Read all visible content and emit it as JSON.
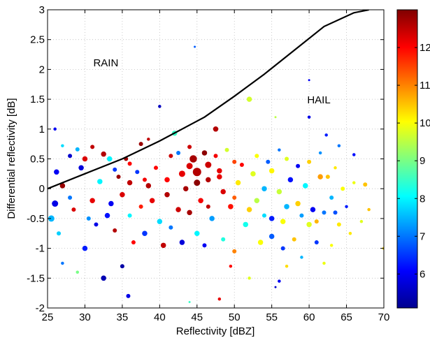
{
  "chart_data": {
    "type": "scatter",
    "xlabel": "Reflectivity [dBZ]",
    "ylabel": "Differential reflectivity [dB]",
    "xlim": [
      25,
      70
    ],
    "ylim": [
      -2,
      3
    ],
    "xticks": [
      25,
      30,
      35,
      40,
      45,
      50,
      55,
      60,
      65,
      70
    ],
    "yticks": [
      -2,
      -1.5,
      -1,
      -0.5,
      0,
      0.5,
      1,
      1.5,
      2,
      2.5,
      3
    ],
    "grid": true,
    "annotations": [
      {
        "text": "RAIN",
        "x": 32.8,
        "y": 2.05
      },
      {
        "text": "HAIL",
        "x": 61.3,
        "y": 1.43
      }
    ],
    "boundary_curve": {
      "x": [
        25,
        30,
        35,
        40,
        43,
        46,
        50,
        54,
        58,
        62,
        66,
        68
      ],
      "y": [
        0.0,
        0.25,
        0.5,
        0.8,
        1.0,
        1.2,
        1.55,
        1.92,
        2.32,
        2.72,
        2.95,
        3.0
      ]
    },
    "colorbar": {
      "ticks": [
        6,
        7,
        8,
        9,
        10,
        11,
        12
      ],
      "range": [
        5.1,
        13.0
      ],
      "colormap": "jet"
    },
    "points": [
      {
        "x": 33.3,
        "y": 0.5,
        "c": 8.0,
        "s": 5
      },
      {
        "x": 29.0,
        "y": 0.66,
        "c": 7.5,
        "s": 4
      },
      {
        "x": 26.0,
        "y": 1.0,
        "c": 6.0,
        "s": 3
      },
      {
        "x": 30.0,
        "y": 0.5,
        "c": 12.3,
        "s": 5
      },
      {
        "x": 32.5,
        "y": 0.58,
        "c": 12.6,
        "s": 5
      },
      {
        "x": 34.0,
        "y": 0.32,
        "c": 6.5,
        "s": 4
      },
      {
        "x": 36.0,
        "y": 0.42,
        "c": 12.0,
        "s": 4
      },
      {
        "x": 37.5,
        "y": 0.75,
        "c": 12.8,
        "s": 4
      },
      {
        "x": 40.0,
        "y": 1.38,
        "c": 5.6,
        "s": 3
      },
      {
        "x": 42.0,
        "y": 0.93,
        "c": 8.5,
        "s": 5
      },
      {
        "x": 38.5,
        "y": 0.83,
        "c": 12.5,
        "s": 3
      },
      {
        "x": 41.5,
        "y": 0.55,
        "c": 12.4,
        "s": 4
      },
      {
        "x": 44.5,
        "y": 0.5,
        "c": 12.7,
        "s": 7
      },
      {
        "x": 44.0,
        "y": 0.38,
        "c": 12.3,
        "s": 6
      },
      {
        "x": 45.0,
        "y": 0.28,
        "c": 12.6,
        "s": 8
      },
      {
        "x": 46.0,
        "y": 0.6,
        "c": 12.9,
        "s": 5
      },
      {
        "x": 47.5,
        "y": 1.0,
        "c": 12.6,
        "s": 5
      },
      {
        "x": 48.0,
        "y": 0.3,
        "c": 12.2,
        "s": 5
      },
      {
        "x": 50.0,
        "y": 0.45,
        "c": 11.5,
        "s": 4
      },
      {
        "x": 52.0,
        "y": 1.5,
        "c": 9.7,
        "s": 5
      },
      {
        "x": 44.7,
        "y": 2.38,
        "c": 6.8,
        "s": 2
      },
      {
        "x": 56.0,
        "y": 0.65,
        "c": 7.0,
        "s": 3
      },
      {
        "x": 55.5,
        "y": 1.2,
        "c": 9.5,
        "s": 2
      },
      {
        "x": 60.0,
        "y": 1.82,
        "c": 6.0,
        "s": 2
      },
      {
        "x": 60.0,
        "y": 1.2,
        "c": 5.9,
        "s": 3
      },
      {
        "x": 62.3,
        "y": 0.9,
        "c": 6.3,
        "s": 3
      },
      {
        "x": 64.0,
        "y": 0.72,
        "c": 7.0,
        "s": 3
      },
      {
        "x": 66.0,
        "y": 0.57,
        "c": 6.2,
        "s": 3
      },
      {
        "x": 62.5,
        "y": 0.2,
        "c": 10.5,
        "s": 4
      },
      {
        "x": 64.5,
        "y": 0.0,
        "c": 10.0,
        "s": 4
      },
      {
        "x": 67.5,
        "y": 0.07,
        "c": 10.5,
        "s": 4
      },
      {
        "x": 68.0,
        "y": -0.35,
        "c": 10.5,
        "s": 3
      },
      {
        "x": 70.0,
        "y": -1.0,
        "c": 10.3,
        "s": 3
      },
      {
        "x": 62.0,
        "y": -0.4,
        "c": 7.0,
        "s": 4
      },
      {
        "x": 60.0,
        "y": -0.6,
        "c": 9.8,
        "s": 5
      },
      {
        "x": 57.0,
        "y": -0.3,
        "c": 7.5,
        "s": 5
      },
      {
        "x": 55.0,
        "y": -0.5,
        "c": 6.3,
        "s": 5
      },
      {
        "x": 53.0,
        "y": -0.2,
        "c": 9.5,
        "s": 5
      },
      {
        "x": 56.5,
        "y": -1.0,
        "c": 6.5,
        "s": 4
      },
      {
        "x": 56.0,
        "y": -1.55,
        "c": 6.0,
        "s": 3
      },
      {
        "x": 55.5,
        "y": -1.65,
        "c": 5.7,
        "s": 2
      },
      {
        "x": 52.0,
        "y": -1.5,
        "c": 9.8,
        "s": 3
      },
      {
        "x": 49.5,
        "y": -1.3,
        "c": 12.0,
        "s": 3
      },
      {
        "x": 48.0,
        "y": -1.85,
        "c": 12.2,
        "s": 3
      },
      {
        "x": 44.0,
        "y": -1.9,
        "c": 8.5,
        "s": 2
      },
      {
        "x": 35.8,
        "y": -1.8,
        "c": 5.9,
        "s": 4
      },
      {
        "x": 32.5,
        "y": -1.5,
        "c": 5.5,
        "s": 5
      },
      {
        "x": 35.0,
        "y": -1.3,
        "c": 5.4,
        "s": 4
      },
      {
        "x": 29.0,
        "y": -1.4,
        "c": 9.0,
        "s": 3
      },
      {
        "x": 27.0,
        "y": -1.25,
        "c": 7.0,
        "s": 3
      },
      {
        "x": 30.0,
        "y": -1.0,
        "c": 6.3,
        "s": 5
      },
      {
        "x": 25.5,
        "y": -0.5,
        "c": 7.5,
        "s": 6
      },
      {
        "x": 26.0,
        "y": -0.25,
        "c": 5.9,
        "s": 6
      },
      {
        "x": 26.2,
        "y": 0.28,
        "c": 6.0,
        "s": 5
      },
      {
        "x": 27.0,
        "y": 0.05,
        "c": 12.8,
        "s": 5
      },
      {
        "x": 28.0,
        "y": -0.15,
        "c": 7.0,
        "s": 4
      },
      {
        "x": 29.5,
        "y": 0.35,
        "c": 5.8,
        "s": 5
      },
      {
        "x": 31.0,
        "y": -0.2,
        "c": 12.2,
        "s": 5
      },
      {
        "x": 32.0,
        "y": 0.12,
        "c": 8.0,
        "s": 5
      },
      {
        "x": 33.0,
        "y": -0.45,
        "c": 6.2,
        "s": 5
      },
      {
        "x": 35.0,
        "y": -0.1,
        "c": 12.3,
        "s": 5
      },
      {
        "x": 36.0,
        "y": 0.1,
        "c": 12.5,
        "s": 5
      },
      {
        "x": 37.5,
        "y": -0.3,
        "c": 11.8,
        "s": 4
      },
      {
        "x": 38.5,
        "y": 0.05,
        "c": 12.6,
        "s": 5
      },
      {
        "x": 40.0,
        "y": -0.55,
        "c": 7.8,
        "s": 5
      },
      {
        "x": 41.0,
        "y": 0.15,
        "c": 12.0,
        "s": 5
      },
      {
        "x": 42.5,
        "y": -0.35,
        "c": 12.4,
        "s": 5
      },
      {
        "x": 43.5,
        "y": 0.0,
        "c": 12.7,
        "s": 5
      },
      {
        "x": 45.5,
        "y": -0.2,
        "c": 12.1,
        "s": 5
      },
      {
        "x": 46.5,
        "y": 0.15,
        "c": 12.6,
        "s": 5
      },
      {
        "x": 47.0,
        "y": -0.5,
        "c": 7.3,
        "s": 5
      },
      {
        "x": 48.5,
        "y": -0.05,
        "c": 12.3,
        "s": 5
      },
      {
        "x": 49.5,
        "y": -0.3,
        "c": 11.9,
        "s": 5
      },
      {
        "x": 50.5,
        "y": 0.1,
        "c": 10.2,
        "s": 5
      },
      {
        "x": 51.5,
        "y": -0.6,
        "c": 8.2,
        "s": 5
      },
      {
        "x": 52.5,
        "y": 0.25,
        "c": 9.8,
        "s": 5
      },
      {
        "x": 54.0,
        "y": 0.0,
        "c": 7.5,
        "s": 5
      },
      {
        "x": 55.0,
        "y": 0.3,
        "c": 10.1,
        "s": 5
      },
      {
        "x": 56.0,
        "y": -0.05,
        "c": 9.6,
        "s": 5
      },
      {
        "x": 57.5,
        "y": 0.15,
        "c": 6.2,
        "s": 5
      },
      {
        "x": 58.5,
        "y": -0.25,
        "c": 10.4,
        "s": 5
      },
      {
        "x": 59.5,
        "y": 0.05,
        "c": 8.0,
        "s": 5
      },
      {
        "x": 60.5,
        "y": -0.35,
        "c": 6.0,
        "s": 5
      },
      {
        "x": 61.5,
        "y": 0.2,
        "c": 10.8,
        "s": 5
      },
      {
        "x": 63.0,
        "y": -0.15,
        "c": 7.5,
        "s": 4
      },
      {
        "x": 64.0,
        "y": -0.6,
        "c": 10.2,
        "s": 4
      },
      {
        "x": 65.0,
        "y": -0.3,
        "c": 6.3,
        "s": 3
      },
      {
        "x": 66.0,
        "y": 0.1,
        "c": 9.9,
        "s": 3
      },
      {
        "x": 45.0,
        "y": -0.75,
        "c": 8.0,
        "s": 5
      },
      {
        "x": 43.0,
        "y": -0.9,
        "c": 5.8,
        "s": 5
      },
      {
        "x": 40.5,
        "y": -0.95,
        "c": 12.5,
        "s": 5
      },
      {
        "x": 38.0,
        "y": -0.75,
        "c": 6.5,
        "s": 5
      },
      {
        "x": 36.5,
        "y": -0.9,
        "c": 12.0,
        "s": 4
      },
      {
        "x": 34.0,
        "y": -0.7,
        "c": 12.6,
        "s": 4
      },
      {
        "x": 31.5,
        "y": -0.6,
        "c": 5.9,
        "s": 4
      },
      {
        "x": 46.0,
        "y": -0.95,
        "c": 6.0,
        "s": 4
      },
      {
        "x": 48.5,
        "y": -0.85,
        "c": 8.3,
        "s": 4
      },
      {
        "x": 50.0,
        "y": -1.05,
        "c": 11.0,
        "s": 4
      },
      {
        "x": 53.5,
        "y": -0.9,
        "c": 10.0,
        "s": 5
      },
      {
        "x": 55.0,
        "y": -0.8,
        "c": 6.8,
        "s": 5
      },
      {
        "x": 58.0,
        "y": -0.85,
        "c": 10.5,
        "s": 4
      },
      {
        "x": 61.0,
        "y": -0.9,
        "c": 6.5,
        "s": 4
      },
      {
        "x": 63.0,
        "y": -0.95,
        "c": 10.0,
        "s": 3
      },
      {
        "x": 59.0,
        "y": -1.15,
        "c": 7.5,
        "s": 3
      },
      {
        "x": 62.0,
        "y": -1.25,
        "c": 9.9,
        "s": 3
      },
      {
        "x": 57.0,
        "y": -1.3,
        "c": 10.3,
        "s": 3
      },
      {
        "x": 44.0,
        "y": 0.7,
        "c": 12.4,
        "s": 4
      },
      {
        "x": 42.5,
        "y": 0.6,
        "c": 7.0,
        "s": 4
      },
      {
        "x": 39.5,
        "y": 0.35,
        "c": 12.0,
        "s": 4
      },
      {
        "x": 37.0,
        "y": 0.28,
        "c": 6.5,
        "s": 4
      },
      {
        "x": 35.5,
        "y": 0.5,
        "c": 12.8,
        "s": 4
      },
      {
        "x": 31.0,
        "y": 0.7,
        "c": 12.5,
        "s": 4
      },
      {
        "x": 28.0,
        "y": 0.55,
        "c": 5.7,
        "s": 4
      },
      {
        "x": 27.0,
        "y": 0.72,
        "c": 7.8,
        "s": 3
      },
      {
        "x": 47.5,
        "y": 0.55,
        "c": 12.1,
        "s": 4
      },
      {
        "x": 49.0,
        "y": 0.65,
        "c": 9.7,
        "s": 4
      },
      {
        "x": 51.0,
        "y": 0.4,
        "c": 12.0,
        "s": 4
      },
      {
        "x": 53.0,
        "y": 0.55,
        "c": 10.0,
        "s": 4
      },
      {
        "x": 54.5,
        "y": 0.45,
        "c": 6.8,
        "s": 4
      },
      {
        "x": 57.0,
        "y": 0.5,
        "c": 9.8,
        "s": 4
      },
      {
        "x": 58.5,
        "y": 0.38,
        "c": 6.0,
        "s": 4
      },
      {
        "x": 60.0,
        "y": 0.45,
        "c": 10.4,
        "s": 4
      },
      {
        "x": 61.5,
        "y": 0.6,
        "c": 7.2,
        "s": 3
      },
      {
        "x": 63.5,
        "y": 0.35,
        "c": 10.2,
        "s": 3
      },
      {
        "x": 26.5,
        "y": -0.75,
        "c": 7.7,
        "s": 4
      },
      {
        "x": 28.5,
        "y": -0.35,
        "c": 12.3,
        "s": 4
      },
      {
        "x": 30.5,
        "y": -0.5,
        "c": 7.2,
        "s": 4
      },
      {
        "x": 33.5,
        "y": -0.25,
        "c": 6.0,
        "s": 5
      },
      {
        "x": 36.0,
        "y": -0.45,
        "c": 8.0,
        "s": 4
      },
      {
        "x": 39.0,
        "y": -0.2,
        "c": 12.2,
        "s": 5
      },
      {
        "x": 41.5,
        "y": -0.65,
        "c": 7.0,
        "s": 4
      },
      {
        "x": 44.0,
        "y": -0.4,
        "c": 12.7,
        "s": 5
      },
      {
        "x": 46.5,
        "y": -0.3,
        "c": 12.5,
        "s": 4
      },
      {
        "x": 48.0,
        "y": 0.2,
        "c": 12.2,
        "s": 5
      },
      {
        "x": 50.0,
        "y": -0.15,
        "c": 11.3,
        "s": 4
      },
      {
        "x": 52.0,
        "y": -0.35,
        "c": 10.4,
        "s": 5
      },
      {
        "x": 54.0,
        "y": -0.45,
        "c": 7.8,
        "s": 4
      },
      {
        "x": 56.5,
        "y": -0.55,
        "c": 10.0,
        "s": 5
      },
      {
        "x": 59.0,
        "y": -0.45,
        "c": 7.3,
        "s": 4
      },
      {
        "x": 61.0,
        "y": -0.55,
        "c": 10.6,
        "s": 4
      },
      {
        "x": 63.5,
        "y": -0.4,
        "c": 6.7,
        "s": 4
      },
      {
        "x": 65.5,
        "y": -0.75,
        "c": 10.2,
        "s": 3
      },
      {
        "x": 67.0,
        "y": -0.55,
        "c": 9.8,
        "s": 3
      },
      {
        "x": 43.0,
        "y": 0.25,
        "c": 12.2,
        "s": 6
      },
      {
        "x": 45.0,
        "y": 0.1,
        "c": 12.9,
        "s": 6
      },
      {
        "x": 46.5,
        "y": 0.4,
        "c": 12.4,
        "s": 6
      },
      {
        "x": 41.0,
        "y": -0.1,
        "c": 12.6,
        "s": 5
      },
      {
        "x": 38.0,
        "y": 0.15,
        "c": 12.1,
        "s": 4
      },
      {
        "x": 34.5,
        "y": 0.2,
        "c": 12.8,
        "s": 4
      }
    ]
  }
}
